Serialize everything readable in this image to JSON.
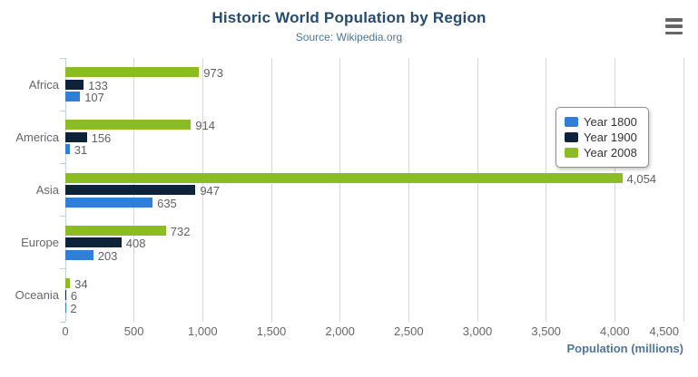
{
  "header": {
    "title": "Historic World Population by Region",
    "subtitle": "Source: Wikipedia.org"
  },
  "menu": {
    "icon": "hamburger-menu-icon",
    "color": "#666666"
  },
  "chart_data": {
    "type": "bar",
    "title": "Historic World Population by Region",
    "subtitle": "Source: Wikipedia.org",
    "categories": [
      "Africa",
      "America",
      "Asia",
      "Europe",
      "Oceania"
    ],
    "series": [
      {
        "name": "Year 1800",
        "color": "#2f7ed8",
        "values": [
          107,
          31,
          635,
          203,
          2
        ]
      },
      {
        "name": "Year 1900",
        "color": "#0d233a",
        "values": [
          133,
          156,
          947,
          408,
          6
        ]
      },
      {
        "name": "Year 2008",
        "color": "#8bbc21",
        "values": [
          973,
          914,
          4054,
          732,
          34
        ]
      }
    ],
    "bar_order_top_to_bottom": [
      "Year 2008",
      "Year 1900",
      "Year 1800"
    ],
    "xlabel": "Population (millions)",
    "xlim": [
      0,
      4500
    ],
    "xticks": [
      0,
      500,
      1000,
      1500,
      2000,
      2500,
      3000,
      3500,
      4000,
      4500
    ],
    "xtick_labels": [
      "0",
      "500",
      "1,000",
      "1,500",
      "2,000",
      "2,500",
      "3,000",
      "3,500",
      "4,000",
      "4,500"
    ],
    "grid": true,
    "legend_position": "right",
    "data_label_format": "thousands-separated"
  },
  "colors": {
    "title": "#274b6d",
    "subtitle": "#4d759e",
    "axis_title": "#4d759e",
    "tick_label": "#666666",
    "category_label": "#666666",
    "data_label": "#606060",
    "gridline": "#d8d8d8",
    "axis_line": "#c0d0e0",
    "legend_border": "#909090",
    "menu_icon": "#666666"
  }
}
